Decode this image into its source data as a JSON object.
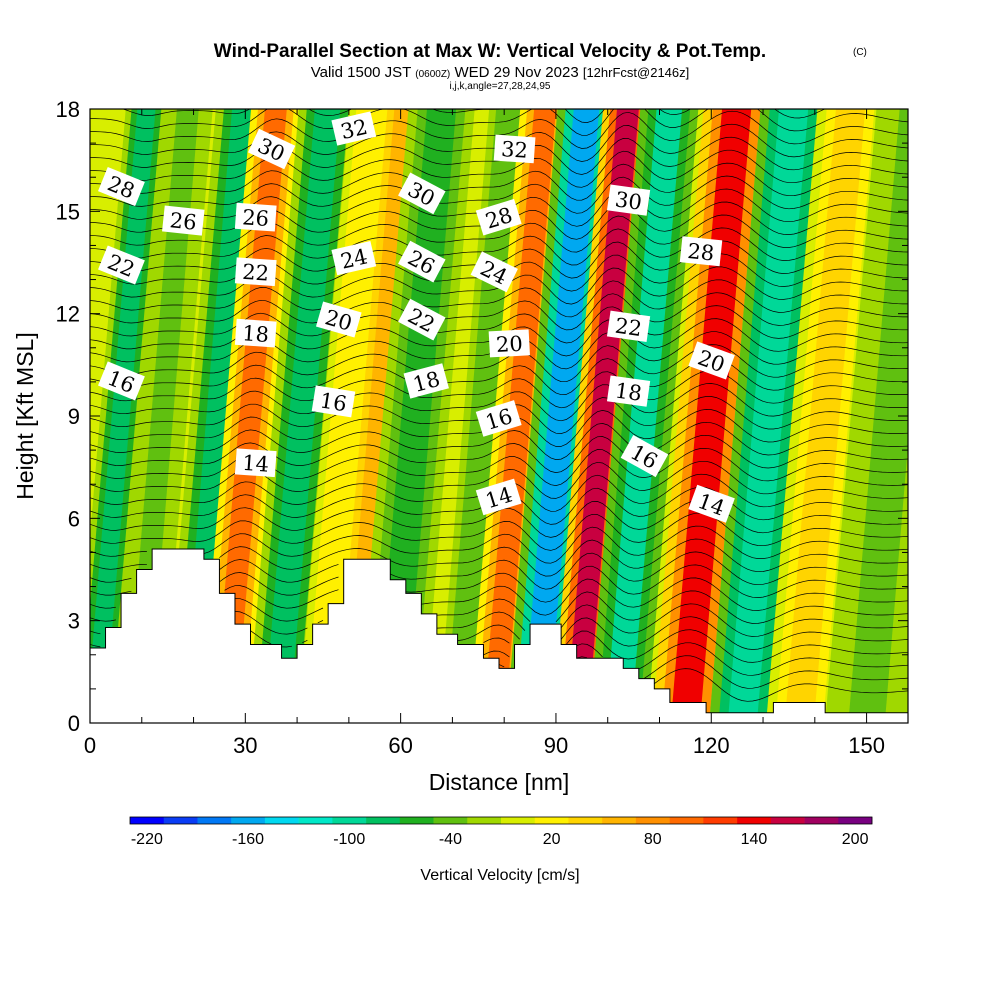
{
  "titles": {
    "main": "Wind-Parallel Section at Max W: Vertical Velocity & Pot.Temp.",
    "copyright": "(C)",
    "valid_prefix": "Valid 1500 JST",
    "valid_utc": "(0600Z)",
    "valid_date": "WED 29 Nov 2023",
    "forecast": "[12hrFcst@2146z]",
    "indices": "i,j,k,angle=27,28,24,95"
  },
  "chart_data": {
    "type": "heatmap",
    "title": "Wind-Parallel Section at Max W: Vertical Velocity & Pot.Temp.",
    "xlabel": "Distance [nm]",
    "ylabel": "Height [Kft MSL]",
    "xlim": [
      0,
      158
    ],
    "ylim": [
      0,
      18
    ],
    "xticks": [
      0,
      30,
      60,
      90,
      120,
      150
    ],
    "yticks": [
      0,
      3,
      6,
      9,
      12,
      15,
      18
    ],
    "colorbar": {
      "title": "Vertical Velocity [cm/s]",
      "levels": [
        -220,
        -200,
        -180,
        -160,
        -140,
        -120,
        -100,
        -80,
        -60,
        -40,
        -20,
        0,
        20,
        40,
        60,
        80,
        100,
        120,
        140,
        160,
        180,
        200,
        220
      ],
      "tick_labels": [
        "-220",
        "-160",
        "-100",
        "-40",
        "20",
        "80",
        "140",
        "200"
      ],
      "colors": [
        "#0000ff",
        "#0a3cf5",
        "#0078f5",
        "#00a8f0",
        "#00d8f0",
        "#00e8c8",
        "#00d898",
        "#00c060",
        "#20b020",
        "#60c010",
        "#a0d800",
        "#d8ee00",
        "#fff000",
        "#ffd400",
        "#ffb400",
        "#ff9000",
        "#ff6a00",
        "#ff3c00",
        "#f00000",
        "#c80040",
        "#a00060",
        "#780080"
      ]
    },
    "velocity_bands": [
      {
        "x": 3,
        "w": 2.5,
        "v": -70
      },
      {
        "x": 11,
        "w": 3,
        "v": -30
      },
      {
        "x": 22,
        "w": 3.5,
        "v": -80
      },
      {
        "x": 28,
        "w": 3,
        "v": 130
      },
      {
        "x": 38,
        "w": 3.5,
        "v": -80
      },
      {
        "x": 47,
        "w": 3,
        "v": 40
      },
      {
        "x": 53,
        "w": 3,
        "v": 80
      },
      {
        "x": 60,
        "w": 4,
        "v": -60
      },
      {
        "x": 74,
        "w": 3,
        "v": -40
      },
      {
        "x": 80,
        "w": 3,
        "v": 130
      },
      {
        "x": 88,
        "w": 3.5,
        "v": -160
      },
      {
        "x": 96,
        "w": 3,
        "v": 190
      },
      {
        "x": 104,
        "w": 3.5,
        "v": -90
      },
      {
        "x": 117,
        "w": 4,
        "v": 160
      },
      {
        "x": 128,
        "w": 4,
        "v": -110
      },
      {
        "x": 139,
        "w": 4,
        "v": 50
      },
      {
        "x": 152,
        "w": 5,
        "v": -30
      }
    ],
    "terrain": [
      [
        0,
        2.2
      ],
      [
        3,
        2.2
      ],
      [
        3,
        2.8
      ],
      [
        6,
        2.8
      ],
      [
        6,
        3.8
      ],
      [
        9,
        3.8
      ],
      [
        9,
        4.5
      ],
      [
        12,
        4.5
      ],
      [
        12,
        5.1
      ],
      [
        22,
        5.1
      ],
      [
        22,
        4.8
      ],
      [
        25,
        4.8
      ],
      [
        25,
        3.8
      ],
      [
        28,
        3.8
      ],
      [
        28,
        2.9
      ],
      [
        31,
        2.9
      ],
      [
        31,
        2.3
      ],
      [
        37,
        2.3
      ],
      [
        37,
        1.9
      ],
      [
        40,
        1.9
      ],
      [
        40,
        2.3
      ],
      [
        43,
        2.3
      ],
      [
        43,
        2.9
      ],
      [
        46,
        2.9
      ],
      [
        46,
        3.5
      ],
      [
        49,
        3.5
      ],
      [
        49,
        4.8
      ],
      [
        58,
        4.8
      ],
      [
        58,
        4.2
      ],
      [
        61,
        4.2
      ],
      [
        61,
        3.8
      ],
      [
        64,
        3.8
      ],
      [
        64,
        3.2
      ],
      [
        67,
        3.2
      ],
      [
        67,
        2.6
      ],
      [
        71,
        2.6
      ],
      [
        71,
        2.3
      ],
      [
        76,
        2.3
      ],
      [
        76,
        1.9
      ],
      [
        79,
        1.9
      ],
      [
        79,
        1.6
      ],
      [
        82,
        1.6
      ],
      [
        82,
        2.3
      ],
      [
        85,
        2.3
      ],
      [
        85,
        2.9
      ],
      [
        91,
        2.9
      ],
      [
        91,
        2.3
      ],
      [
        94,
        2.3
      ],
      [
        94,
        1.9
      ],
      [
        103,
        1.9
      ],
      [
        103,
        1.6
      ],
      [
        106,
        1.6
      ],
      [
        106,
        1.3
      ],
      [
        109,
        1.3
      ],
      [
        109,
        1.0
      ],
      [
        112,
        1.0
      ],
      [
        112,
        0.6
      ],
      [
        119,
        0.6
      ],
      [
        119,
        0.3
      ],
      [
        132,
        0.3
      ],
      [
        132,
        0.6
      ],
      [
        142,
        0.6
      ],
      [
        142,
        0.3
      ],
      [
        158,
        0.3
      ]
    ],
    "theta_contour_labels": [
      {
        "label": "28",
        "x": 6,
        "y": 15.7
      },
      {
        "label": "22",
        "x": 6,
        "y": 13.4
      },
      {
        "label": "16",
        "x": 6,
        "y": 10.0
      },
      {
        "label": "26",
        "x": 18,
        "y": 14.7
      },
      {
        "label": "30",
        "x": 35,
        "y": 16.8
      },
      {
        "label": "26",
        "x": 32,
        "y": 14.8
      },
      {
        "label": "22",
        "x": 32,
        "y": 13.2
      },
      {
        "label": "18",
        "x": 32,
        "y": 11.4
      },
      {
        "label": "14",
        "x": 32,
        "y": 7.6
      },
      {
        "label": "32",
        "x": 51,
        "y": 17.4
      },
      {
        "label": "24",
        "x": 51,
        "y": 13.6
      },
      {
        "label": "20",
        "x": 48,
        "y": 11.8
      },
      {
        "label": "16",
        "x": 47,
        "y": 9.4
      },
      {
        "label": "30",
        "x": 64,
        "y": 15.5
      },
      {
        "label": "26",
        "x": 64,
        "y": 13.5
      },
      {
        "label": "22",
        "x": 64,
        "y": 11.8
      },
      {
        "label": "18",
        "x": 65,
        "y": 10.0
      },
      {
        "label": "32",
        "x": 82,
        "y": 16.8
      },
      {
        "label": "28",
        "x": 79,
        "y": 14.8
      },
      {
        "label": "24",
        "x": 78,
        "y": 13.2
      },
      {
        "label": "20",
        "x": 81,
        "y": 11.1
      },
      {
        "label": "16",
        "x": 79,
        "y": 8.9
      },
      {
        "label": "14",
        "x": 79,
        "y": 6.6
      },
      {
        "label": "30",
        "x": 104,
        "y": 15.3
      },
      {
        "label": "22",
        "x": 104,
        "y": 11.6
      },
      {
        "label": "18",
        "x": 104,
        "y": 9.7
      },
      {
        "label": "16",
        "x": 107,
        "y": 7.8
      },
      {
        "label": "28",
        "x": 118,
        "y": 13.8
      },
      {
        "label": "20",
        "x": 120,
        "y": 10.6
      },
      {
        "label": "14",
        "x": 120,
        "y": 6.4
      }
    ]
  }
}
